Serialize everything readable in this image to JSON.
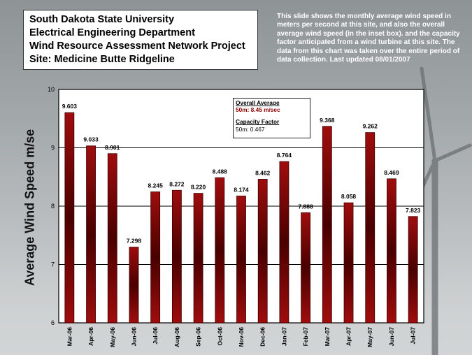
{
  "header": {
    "lines": [
      "South Dakota State University",
      "Electrical Engineering Department",
      "Wind Resource Assessment Network Project",
      "Site:  Medicine Butte Ridgeline"
    ]
  },
  "description": "This slide shows the monthly average wind speed in meters per second at this site, and also the overall average wind speed (in the inset box). and the capacity factor anticipated from a wind turbine at this site. The data from this chart was taken over the entire period of data collection. Last updated 08/01/2007",
  "legend_box": {
    "overall_heading": "Overall Average",
    "overall_value": "50m: 8.45 m/sec",
    "capacity_heading": "Capacity Factor",
    "capacity_value": "50m: 0.467"
  },
  "colors": {
    "bar_dark": "#5a0000",
    "bar_light": "#9e0a0a",
    "plot_bg": "#ffffff"
  },
  "chart_data": {
    "type": "bar",
    "categories": [
      "Mar-06",
      "Apr-06",
      "May-06",
      "Jun-06",
      "Jul-06",
      "Aug-06",
      "Sep-06",
      "Oct-06",
      "Nov-06",
      "Dec-06",
      "Jan-07",
      "Feb-07",
      "Mar-07",
      "Apr-07",
      "May-07",
      "Jun-07",
      "Jul-07"
    ],
    "values": [
      9.603,
      9.033,
      8.901,
      7.298,
      8.245,
      8.272,
      8.22,
      8.488,
      8.174,
      8.462,
      8.764,
      7.888,
      9.368,
      8.058,
      9.262,
      8.469,
      7.823
    ],
    "value_labels": [
      "9.603",
      "9.033",
      "8.901",
      "7.298",
      "8.245",
      "8.272",
      "8.220",
      "8.488",
      "8.174",
      "8.462",
      "8.764",
      "7.888",
      "9.368",
      "8.058",
      "9.262",
      "8.469",
      "7.823"
    ],
    "ylabel": "Average Wind Speed m/se",
    "ylim": [
      6,
      10
    ],
    "yticks": [
      "6",
      "7",
      "8",
      "9",
      "10"
    ],
    "grid": true
  }
}
